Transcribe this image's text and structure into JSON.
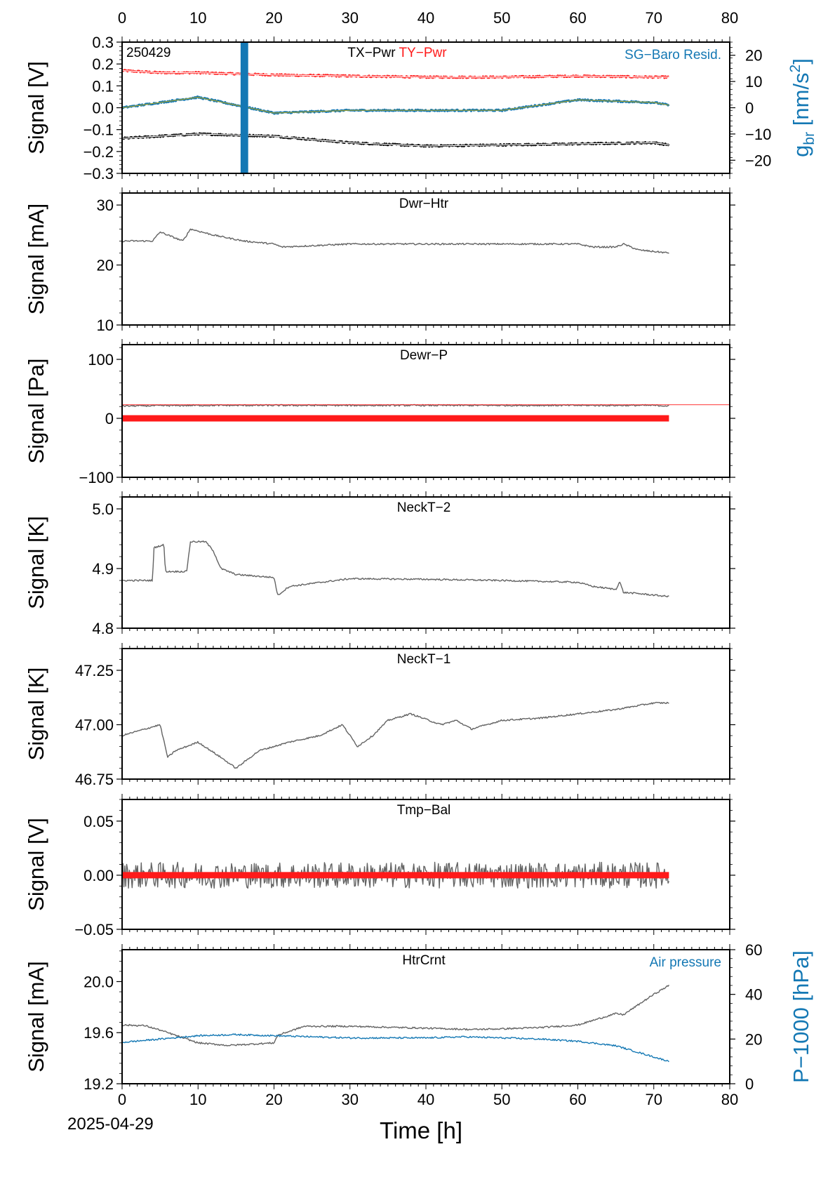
{
  "colors": {
    "gray": "#636363",
    "red": "#ff1a1a",
    "blue": "#1478b4",
    "black": "#000000",
    "olive": "#a0a032"
  },
  "figure": {
    "date_label": "2025-04-29",
    "xlabel": "Time [h]",
    "x_ticks": [
      "0",
      "10",
      "20",
      "30",
      "40",
      "50",
      "60",
      "70",
      "80"
    ]
  },
  "chart_data": [
    {
      "type": "line",
      "id": "tx-pwr",
      "stamp": "250429",
      "title_parts": [
        "TX−Pwr",
        "TY−Pwr"
      ],
      "right_legend": "SG−Baro Resid.",
      "ylabel": "Signal [V]",
      "ylim": [
        -0.3,
        0.3
      ],
      "y_ticks": [
        "−0.3",
        "−0.2",
        "−0.1",
        "0.0",
        "0.1",
        "0.2",
        "0.3"
      ],
      "y_tick_values": [
        -0.3,
        -0.2,
        -0.1,
        0.0,
        0.1,
        0.2,
        0.3
      ],
      "y2_label_parts": [
        "g",
        "br",
        " [nm/s",
        "2",
        "]"
      ],
      "y2lim": [
        -25,
        25
      ],
      "y2_ticks": [
        "−20",
        "−10",
        "0",
        "10",
        "20"
      ],
      "y2_tick_values": [
        -20,
        -10,
        0,
        10,
        20
      ],
      "series": [
        {
          "name": "TY−Pwr",
          "color": "red",
          "x": [
            0,
            5,
            10,
            20,
            30,
            40,
            50,
            60,
            70,
            72
          ],
          "y": [
            0.17,
            0.16,
            0.16,
            0.15,
            0.145,
            0.14,
            0.14,
            0.145,
            0.14,
            0.14
          ]
        },
        {
          "name": "TX−Pwr",
          "color": "black",
          "x": [
            0,
            5,
            10,
            20,
            30,
            40,
            50,
            60,
            70,
            72
          ],
          "y": [
            -0.14,
            -0.13,
            -0.12,
            -0.13,
            -0.16,
            -0.175,
            -0.17,
            -0.165,
            -0.16,
            -0.17
          ]
        },
        {
          "name": "SG−Baro Resid.",
          "color": "blue",
          "axis": "y2",
          "x": [
            0,
            5,
            10,
            20,
            30,
            40,
            50,
            60,
            70,
            72
          ],
          "y": [
            0,
            2,
            4,
            -2,
            -1,
            -1,
            -1,
            3,
            2,
            1
          ]
        }
      ]
    },
    {
      "type": "line",
      "id": "dwr-htr",
      "title": "Dwr−Htr",
      "ylabel": "Signal [mA]",
      "ylim": [
        10,
        32
      ],
      "y_ticks": [
        "10",
        "20",
        "30"
      ],
      "y_tick_values": [
        10,
        20,
        30
      ],
      "series": [
        {
          "color": "gray",
          "x": [
            0,
            4,
            5,
            8,
            9,
            12,
            16,
            20,
            21,
            30,
            40,
            50,
            60,
            62,
            65,
            66,
            68,
            72
          ],
          "y": [
            24,
            24,
            25.5,
            24,
            26,
            25,
            24,
            23.5,
            23,
            23.5,
            23.5,
            23.5,
            23.5,
            23,
            23,
            23.5,
            22.5,
            22
          ]
        }
      ]
    },
    {
      "type": "line",
      "id": "dewr-p",
      "title": "Dewr−P",
      "ylabel": "Signal [Pa]",
      "ylim": [
        -100,
        125
      ],
      "y_ticks": [
        "−100",
        "0",
        "100"
      ],
      "y_tick_values": [
        -100,
        0,
        100
      ],
      "series": [
        {
          "color": "gray",
          "x": [
            0,
            10,
            20,
            30,
            40,
            50,
            60,
            70,
            72
          ],
          "y": [
            21,
            22,
            22,
            22,
            22,
            22,
            22,
            22,
            21
          ]
        },
        {
          "color": "red",
          "x": [
            0,
            72
          ],
          "y": [
            0,
            0
          ]
        }
      ]
    },
    {
      "type": "line",
      "id": "neckt-2",
      "title": "NeckT−2",
      "ylabel": "Signal [K]",
      "ylim": [
        4.8,
        5.02
      ],
      "y_ticks": [
        "4.8",
        "4.9",
        "5.0"
      ],
      "y_tick_values": [
        4.8,
        4.9,
        5.0
      ],
      "series": [
        {
          "color": "gray",
          "x": [
            0,
            4,
            4.2,
            5.5,
            5.7,
            8.5,
            9,
            11,
            12,
            13,
            15,
            20,
            20.5,
            22,
            25,
            30,
            40,
            50,
            60,
            62,
            65,
            65.5,
            66,
            68,
            72
          ],
          "y": [
            4.88,
            4.88,
            4.935,
            4.94,
            4.895,
            4.895,
            4.945,
            4.945,
            4.93,
            4.9,
            4.89,
            4.885,
            4.855,
            4.87,
            4.875,
            4.883,
            4.882,
            4.88,
            4.877,
            4.87,
            4.865,
            4.878,
            4.86,
            4.858,
            4.853
          ]
        }
      ]
    },
    {
      "type": "line",
      "id": "neckt-1",
      "title": "NeckT−1",
      "ylabel": "Signal [K]",
      "ylim": [
        46.75,
        47.35
      ],
      "y_ticks": [
        "46.75",
        "47.00",
        "47.25"
      ],
      "y_tick_values": [
        46.75,
        47.0,
        47.25
      ],
      "series": [
        {
          "color": "gray",
          "x": [
            0,
            2,
            5,
            6,
            7,
            10,
            13,
            15,
            18,
            22,
            26,
            29,
            31,
            33,
            35,
            38,
            42,
            44,
            46,
            50,
            55,
            60,
            65,
            70,
            72
          ],
          "y": [
            46.95,
            46.97,
            47.0,
            46.85,
            46.88,
            46.92,
            46.85,
            46.8,
            46.88,
            46.92,
            46.95,
            47.0,
            46.9,
            46.95,
            47.02,
            47.05,
            47.0,
            47.02,
            46.98,
            47.02,
            47.03,
            47.05,
            47.07,
            47.1,
            47.1
          ]
        }
      ]
    },
    {
      "type": "line",
      "id": "tmp-bal",
      "title": "Tmp−Bal",
      "ylabel": "Signal [V]",
      "ylim": [
        -0.05,
        0.07
      ],
      "y_ticks": [
        "−0.05",
        "0.00",
        "0.05"
      ],
      "y_tick_values": [
        -0.05,
        0.0,
        0.05
      ],
      "series": [
        {
          "color": "gray",
          "x": [
            0,
            72
          ],
          "y": [
            0,
            0
          ],
          "noise": 0.012
        },
        {
          "color": "red",
          "x": [
            0,
            72
          ],
          "y": [
            0,
            0
          ]
        }
      ]
    },
    {
      "type": "line",
      "id": "htrcrnt",
      "title": "HtrCrnt",
      "right_legend": "Air pressure",
      "ylabel": "Signal [mA]",
      "ylim": [
        19.2,
        20.25
      ],
      "y_ticks": [
        "19.2",
        "19.6",
        "20.0"
      ],
      "y_tick_values": [
        19.2,
        19.6,
        20.0
      ],
      "y2_label": "P−1000 [hPa]",
      "y2lim": [
        0,
        60
      ],
      "y2_ticks": [
        "0",
        "20",
        "40",
        "60"
      ],
      "y2_tick_values": [
        0,
        20,
        40,
        60
      ],
      "series": [
        {
          "color": "gray",
          "x": [
            0,
            3,
            5,
            8,
            10,
            14,
            17,
            20,
            20.5,
            24,
            30,
            40,
            46,
            50,
            55,
            60,
            65,
            66,
            70,
            72
          ],
          "y": [
            19.66,
            19.655,
            19.62,
            19.56,
            19.52,
            19.5,
            19.51,
            19.52,
            19.58,
            19.65,
            19.65,
            19.635,
            19.625,
            19.63,
            19.64,
            19.66,
            19.75,
            19.74,
            19.9,
            19.97
          ]
        },
        {
          "color": "blue",
          "axis": "y2",
          "x": [
            0,
            5,
            10,
            15,
            20,
            30,
            40,
            45,
            50,
            55,
            60,
            65,
            70,
            72
          ],
          "y": [
            18.5,
            20,
            21.5,
            22,
            21.5,
            20.5,
            20.5,
            21,
            20.5,
            20,
            19,
            17,
            12,
            10
          ]
        }
      ]
    }
  ]
}
